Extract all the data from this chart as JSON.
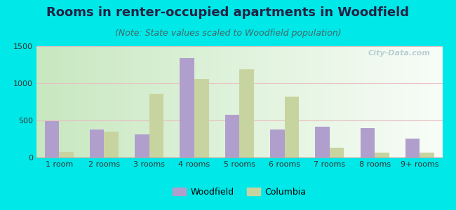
{
  "title": "Rooms in renter-occupied apartments in Woodfield",
  "subtitle": "(Note: State values scaled to Woodfield population)",
  "categories": [
    "1 room",
    "2 rooms",
    "3 rooms",
    "4 rooms",
    "5 rooms",
    "6 rooms",
    "7 rooms",
    "8 rooms",
    "9+ rooms"
  ],
  "woodfield": [
    490,
    380,
    310,
    1340,
    580,
    375,
    415,
    395,
    255
  ],
  "columbia": [
    80,
    345,
    860,
    1060,
    1185,
    825,
    130,
    70,
    70
  ],
  "woodfield_color": "#b09fcc",
  "columbia_color": "#c8d4a0",
  "background_color": "#00e8e8",
  "ylim": [
    0,
    1500
  ],
  "yticks": [
    0,
    500,
    1000,
    1500
  ],
  "title_fontsize": 13,
  "subtitle_fontsize": 9,
  "tick_fontsize": 8,
  "legend_fontsize": 9,
  "watermark_text": "City-Data.com",
  "bar_width": 0.32
}
